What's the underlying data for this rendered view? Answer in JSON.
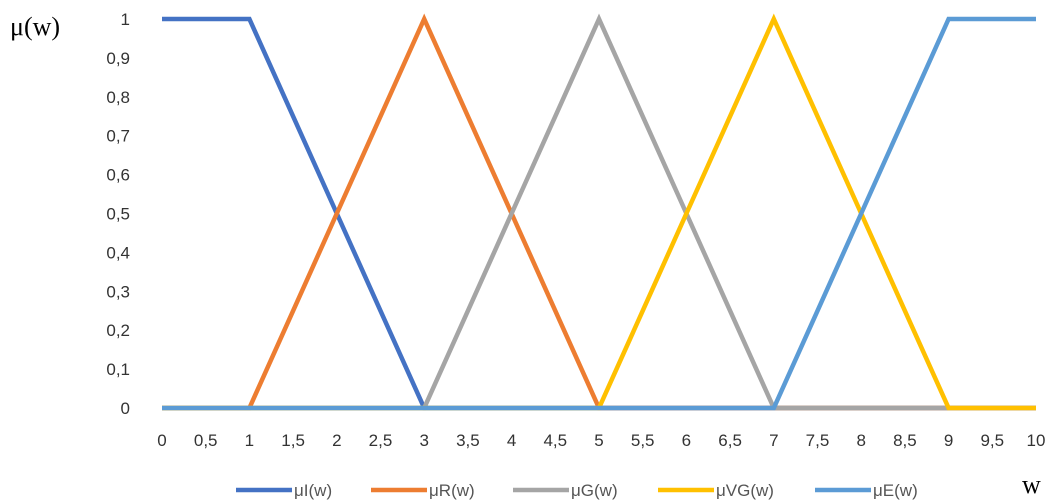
{
  "chart_data": {
    "type": "line",
    "title": "",
    "ylabel": "μ(w)",
    "xlabel": "w",
    "x": [
      0,
      0.5,
      1,
      1.5,
      2,
      2.5,
      3,
      3.5,
      4,
      4.5,
      5,
      5.5,
      6,
      6.5,
      7,
      7.5,
      8,
      8.5,
      9,
      9.5,
      10
    ],
    "x_tick_labels": [
      "0",
      "0,5",
      "1",
      "1,5",
      "2",
      "2,5",
      "3",
      "3,5",
      "4",
      "4,5",
      "5",
      "5,5",
      "6",
      "6,5",
      "7",
      "7,5",
      "8",
      "8,5",
      "9",
      "9,5",
      "10"
    ],
    "y_tick_values": [
      0,
      0.1,
      0.2,
      0.3,
      0.4,
      0.5,
      0.6,
      0.7,
      0.8,
      0.9,
      1
    ],
    "y_tick_labels": [
      "0",
      "0,1",
      "0,2",
      "0,3",
      "0,4",
      "0,5",
      "0,6",
      "0,7",
      "0,8",
      "0,9",
      "1"
    ],
    "xlim": [
      0,
      10
    ],
    "ylim": [
      0,
      1
    ],
    "grid": false,
    "legend_position": "bottom",
    "series": [
      {
        "name": "μI(w)",
        "color": "#4472C4",
        "values": [
          1,
          1,
          1,
          0.75,
          0.5,
          0.25,
          0,
          0,
          0,
          0,
          0,
          0,
          0,
          0,
          0,
          0,
          0,
          0,
          0,
          0,
          0
        ]
      },
      {
        "name": "μR(w)",
        "color": "#ED7D31",
        "values": [
          0,
          0,
          0,
          0.25,
          0.5,
          0.75,
          1,
          0.75,
          0.5,
          0.25,
          0,
          0,
          0,
          0,
          0,
          0,
          0,
          0,
          0,
          0,
          0
        ]
      },
      {
        "name": "μG(w)",
        "color": "#A5A5A5",
        "values": [
          0,
          0,
          0,
          0,
          0,
          0,
          0,
          0.25,
          0.5,
          0.75,
          1,
          0.75,
          0.5,
          0.25,
          0,
          0,
          0,
          0,
          0,
          0,
          0
        ]
      },
      {
        "name": "μVG(w)",
        "color": "#FFC000",
        "values": [
          0,
          0,
          0,
          0,
          0,
          0,
          0,
          0,
          0,
          0,
          0,
          0.25,
          0.5,
          0.75,
          1,
          0.75,
          0.5,
          0.25,
          0,
          0,
          0
        ]
      },
      {
        "name": "μE(w)",
        "color": "#5B9BD5",
        "values": [
          0,
          0,
          0,
          0,
          0,
          0,
          0,
          0,
          0,
          0,
          0,
          0,
          0,
          0,
          0,
          0.25,
          0.5,
          0.75,
          1,
          1,
          1
        ]
      }
    ]
  }
}
